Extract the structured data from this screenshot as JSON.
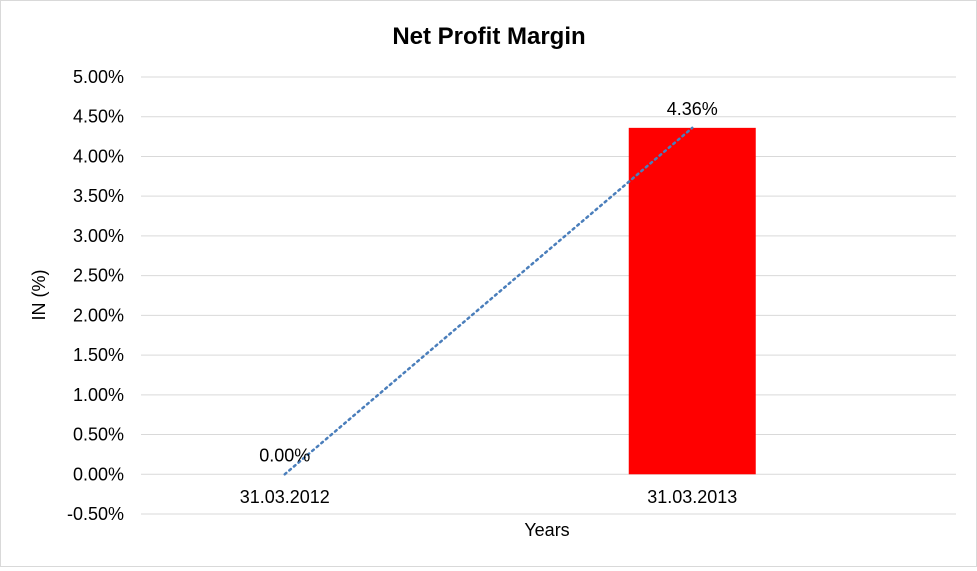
{
  "chart_data": {
    "type": "bar",
    "title": "Net Profit Margin",
    "xlabel": "Years",
    "ylabel": "IN (%)",
    "categories": [
      "31.03.2012",
      "31.03.2013"
    ],
    "series": [
      {
        "values": [
          0.0,
          4.36
        ],
        "data_labels": [
          "0.00%",
          "4.36%"
        ],
        "color": "#ff0000"
      }
    ],
    "trendline": {
      "type": "linear",
      "style": "dotted",
      "color": "#4a7ebb"
    },
    "ylim": [
      -0.5,
      5.0
    ],
    "yticks": [
      5.0,
      4.5,
      4.0,
      3.5,
      3.0,
      2.5,
      2.0,
      1.5,
      1.0,
      0.5,
      0.0,
      -0.5
    ],
    "ytick_labels": [
      "5.00%",
      "4.50%",
      "4.00%",
      "3.50%",
      "3.00%",
      "2.50%",
      "2.00%",
      "1.50%",
      "1.00%",
      "0.50%",
      "0.00%",
      "-0.50%"
    ],
    "grid": true,
    "legend": "none"
  }
}
